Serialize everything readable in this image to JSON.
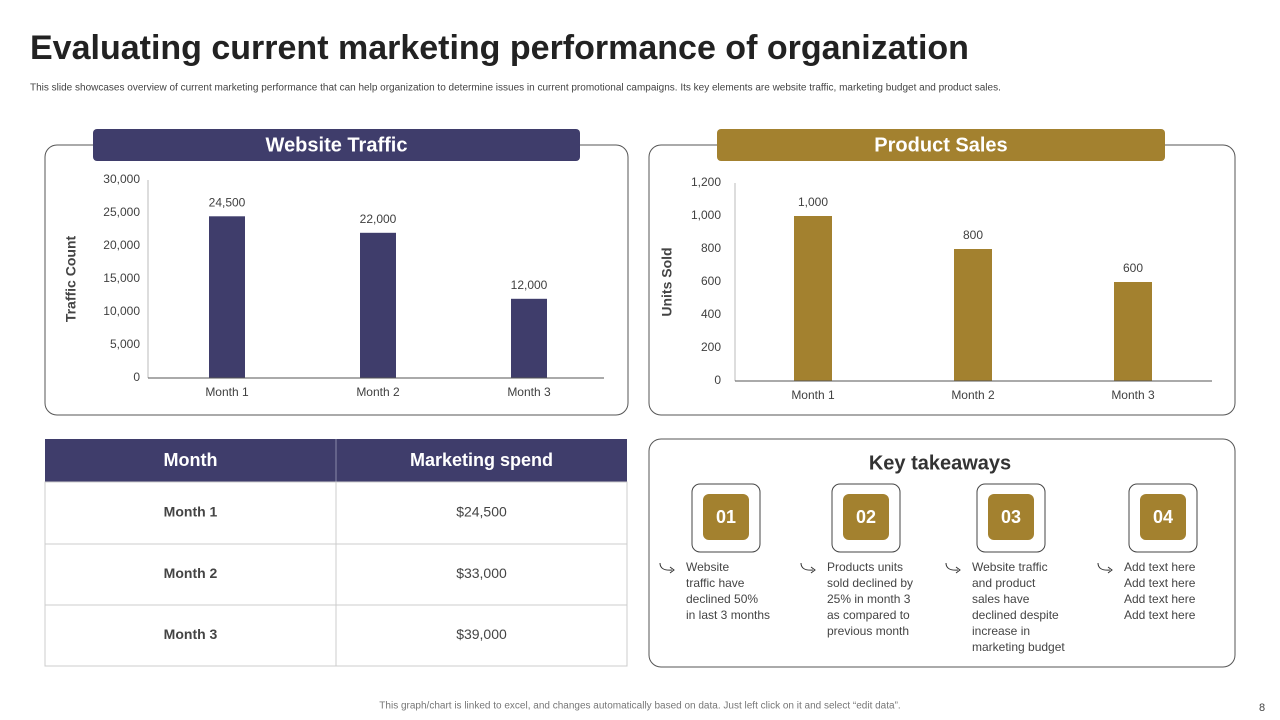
{
  "title": "Evaluating current marketing performance of organization",
  "subtitle": "This slide showcases overview of current marketing performance that can help organization to determine issues in current promotional campaigns. Its key elements are website traffic, marketing budget and product sales.",
  "chart_data": [
    {
      "type": "bar",
      "title": "Website Traffic",
      "y_label": "Traffic Count",
      "categories": [
        "Month 1",
        "Month 2",
        "Month 3"
      ],
      "values": [
        24500,
        22000,
        12000
      ],
      "value_labels": [
        "24,500",
        "22,000",
        "12,000"
      ],
      "color": "#3f3d6b",
      "ylim": [
        0,
        30000
      ],
      "yticks": [
        0,
        {
          "value": 5000,
          "label": "5,000"
        },
        {
          "value": 10000,
          "label": "10,000"
        },
        {
          "value": 15000,
          "label": "15,000"
        },
        {
          "value": 20000,
          "label": "20,000"
        },
        {
          "value": 25000,
          "label": "25,000"
        },
        {
          "value": 30000,
          "label": "30,000"
        }
      ],
      "grid": false
    },
    {
      "type": "bar",
      "title": "Product Sales",
      "y_label": "Units Sold",
      "categories": [
        "Month 1",
        "Month 2",
        "Month 3"
      ],
      "values": [
        1000,
        800,
        600
      ],
      "value_labels": [
        "1,000",
        "800",
        "600"
      ],
      "color": "#a3812f",
      "ylim": [
        0,
        1200
      ],
      "yticks": [
        0,
        200,
        400,
        600,
        800,
        {
          "value": 1000,
          "label": "1,000"
        },
        {
          "value": 1200,
          "label": "1,200"
        }
      ],
      "grid": false
    }
  ],
  "table": {
    "header": [
      "Month",
      "Marketing spend"
    ],
    "rows": [
      [
        "Month 1",
        "$24,500"
      ],
      [
        "Month 2",
        "$33,000"
      ],
      [
        "Month 3",
        "$39,000"
      ]
    ]
  },
  "takeaways": {
    "title": "Key takeaways",
    "items": [
      {
        "number": "01",
        "lines": [
          "Website",
          "traffic have",
          "declined 50%",
          "in last 3 months"
        ]
      },
      {
        "number": "02",
        "lines": [
          "Products units",
          "sold declined by",
          "25% in month 3",
          "as compared to",
          "previous  month"
        ]
      },
      {
        "number": "03",
        "lines": [
          "Website traffic",
          "and product",
          "sales have",
          "declined despite",
          "increase in",
          "marketing budget"
        ]
      },
      {
        "number": "04",
        "lines": [
          "Add text here",
          "Add text here",
          "Add text here",
          "Add text here"
        ]
      }
    ]
  },
  "footer": "This graph/chart is linked to excel,  and changes automatically based on data. Just left click on it and select “edit data”.",
  "page_number": "8"
}
